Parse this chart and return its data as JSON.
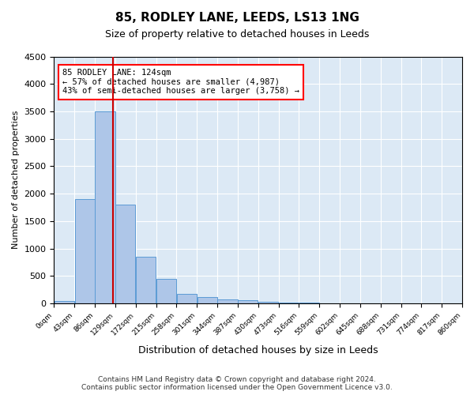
{
  "title": "85, RODLEY LANE, LEEDS, LS13 1NG",
  "subtitle": "Size of property relative to detached houses in Leeds",
  "xlabel": "Distribution of detached houses by size in Leeds",
  "ylabel": "Number of detached properties",
  "bar_color": "#aec6e8",
  "bar_edge_color": "#5b9bd5",
  "background_color": "#dce9f5",
  "grid_color": "#ffffff",
  "bin_edges": [
    0,
    43,
    86,
    129,
    172,
    215,
    258,
    301,
    344,
    387,
    430,
    473,
    516,
    559,
    602,
    645,
    688,
    731,
    774,
    817,
    860
  ],
  "bar_heights": [
    50,
    1900,
    3500,
    1800,
    850,
    450,
    175,
    110,
    80,
    60,
    30,
    20,
    10,
    5,
    3,
    2,
    1,
    1,
    0,
    0
  ],
  "property_size": 124,
  "annotation_text": "85 RODLEY LANE: 124sqm\n← 57% of detached houses are smaller (4,987)\n43% of semi-detached houses are larger (3,758) →",
  "vline_color": "#cc0000",
  "ylim": [
    0,
    4500
  ],
  "yticks": [
    0,
    500,
    1000,
    1500,
    2000,
    2500,
    3000,
    3500,
    4000,
    4500
  ],
  "footer_text": "Contains HM Land Registry data © Crown copyright and database right 2024.\nContains public sector information licensed under the Open Government Licence v3.0.",
  "tick_labels": [
    "0sqm",
    "43sqm",
    "86sqm",
    "129sqm",
    "172sqm",
    "215sqm",
    "258sqm",
    "301sqm",
    "344sqm",
    "387sqm",
    "430sqm",
    "473sqm",
    "516sqm",
    "559sqm",
    "602sqm",
    "645sqm",
    "688sqm",
    "731sqm",
    "774sqm",
    "817sqm",
    "860sqm"
  ]
}
